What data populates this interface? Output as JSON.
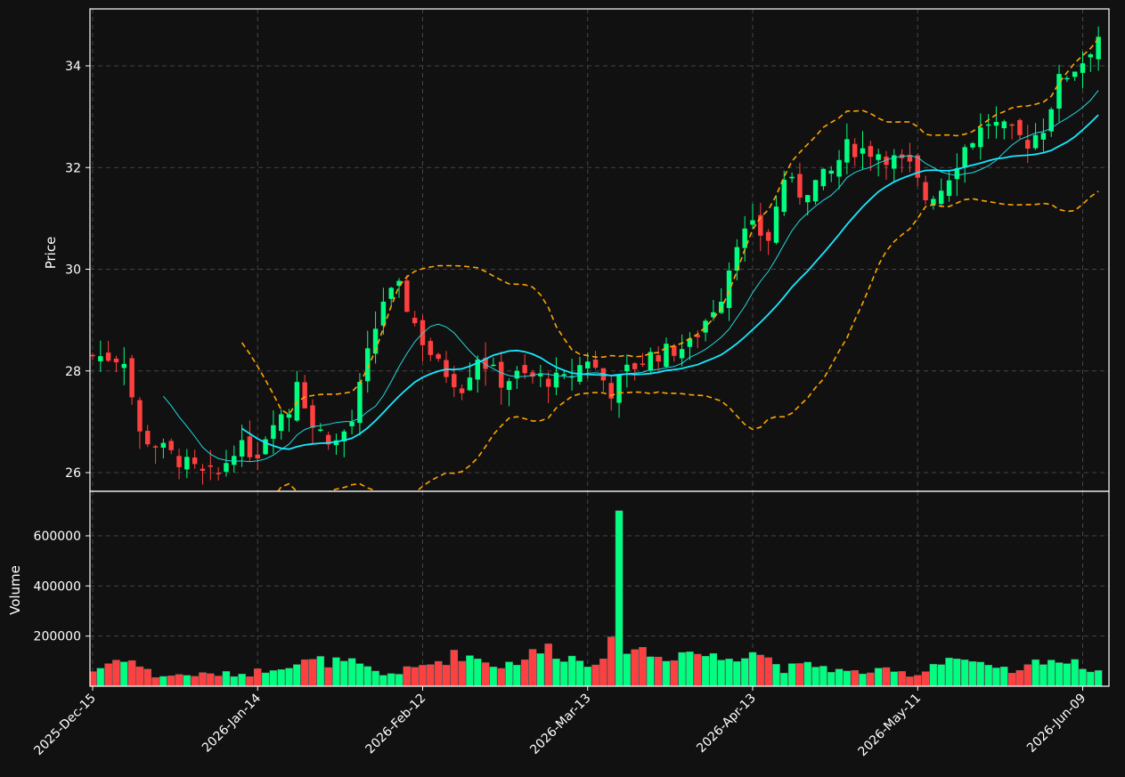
{
  "chart_data": {
    "type": "candlestick",
    "title": "",
    "background": "#111111",
    "grid": true,
    "colors": {
      "up": "#00ff80",
      "down": "#ff4040",
      "ma_fast": "#22d8e0",
      "ma_slow": "#18e8ff",
      "bollinger": "#ffa500",
      "grid": "#444444",
      "axis": "#ffffff"
    },
    "price_panel": {
      "ylabel": "Price",
      "ylim": [
        25.6,
        35.1
      ],
      "yticks": [
        26,
        28,
        30,
        32,
        34
      ]
    },
    "volume_panel": {
      "ylabel": "Volume",
      "ylim": [
        0,
        720000
      ],
      "yticks": [
        200000,
        400000,
        600000
      ]
    },
    "x_ticks": [
      {
        "index": 0,
        "label": "2025-Dec-15"
      },
      {
        "index": 21,
        "label": "2026-Jan-14"
      },
      {
        "index": 42,
        "label": "2026-Feb-12"
      },
      {
        "index": 63,
        "label": "2026-Mar-13"
      },
      {
        "index": 84,
        "label": "2026-Apr-13"
      },
      {
        "index": 105,
        "label": "2026-May-11"
      },
      {
        "index": 126,
        "label": "2026-Jun-09"
      }
    ],
    "n_bars": 129,
    "price_keyframes": [
      [
        0,
        28.3
      ],
      [
        4,
        28.25
      ],
      [
        5,
        27.5
      ],
      [
        6,
        26.75
      ],
      [
        12,
        26.15
      ],
      [
        14,
        25.95
      ],
      [
        16,
        25.95
      ],
      [
        18,
        26.5
      ],
      [
        21,
        26.4
      ],
      [
        23,
        27.1
      ],
      [
        25,
        27.2
      ],
      [
        26,
        27.9
      ],
      [
        28,
        26.9
      ],
      [
        31,
        26.6
      ],
      [
        33,
        27.0
      ],
      [
        35,
        28.3
      ],
      [
        37,
        29.4
      ],
      [
        39,
        29.6
      ],
      [
        42,
        28.6
      ],
      [
        44,
        28.1
      ],
      [
        47,
        27.7
      ],
      [
        49,
        28.3
      ],
      [
        52,
        27.8
      ],
      [
        54,
        27.9
      ],
      [
        60,
        27.8
      ],
      [
        63,
        28.25
      ],
      [
        66,
        27.6
      ],
      [
        68,
        28.0
      ],
      [
        71,
        28.3
      ],
      [
        76,
        28.5
      ],
      [
        80,
        29.5
      ],
      [
        82,
        30.6
      ],
      [
        84,
        30.8
      ],
      [
        86,
        30.6
      ],
      [
        88,
        31.8
      ],
      [
        90,
        31.5
      ],
      [
        94,
        31.9
      ],
      [
        96,
        32.4
      ],
      [
        100,
        32.3
      ],
      [
        104,
        32.0
      ],
      [
        106,
        31.4
      ],
      [
        108,
        31.6
      ],
      [
        111,
        32.4
      ],
      [
        114,
        32.9
      ],
      [
        119,
        32.5
      ],
      [
        121,
        32.8
      ],
      [
        123,
        33.7
      ],
      [
        126,
        34.1
      ],
      [
        128,
        34.6
      ]
    ],
    "volume_keyframes": [
      [
        0,
        60000
      ],
      [
        4,
        120000
      ],
      [
        8,
        40000
      ],
      [
        12,
        45000
      ],
      [
        20,
        50000
      ],
      [
        24,
        85000
      ],
      [
        29,
        100000
      ],
      [
        33,
        90000
      ],
      [
        37,
        45000
      ],
      [
        41,
        70000
      ],
      [
        47,
        130000
      ],
      [
        52,
        80000
      ],
      [
        58,
        150000
      ],
      [
        63,
        90000
      ],
      [
        66,
        160000
      ],
      [
        67,
        700000
      ],
      [
        68,
        170000
      ],
      [
        72,
        115000
      ],
      [
        76,
        140000
      ],
      [
        80,
        110000
      ],
      [
        84,
        150000
      ],
      [
        88,
        70000
      ],
      [
        92,
        85000
      ],
      [
        96,
        55000
      ],
      [
        101,
        60000
      ],
      [
        105,
        45000
      ],
      [
        108,
        110000
      ],
      [
        110,
        115000
      ],
      [
        114,
        70000
      ],
      [
        118,
        55000
      ],
      [
        121,
        115000
      ],
      [
        124,
        95000
      ],
      [
        128,
        65000
      ]
    ]
  }
}
